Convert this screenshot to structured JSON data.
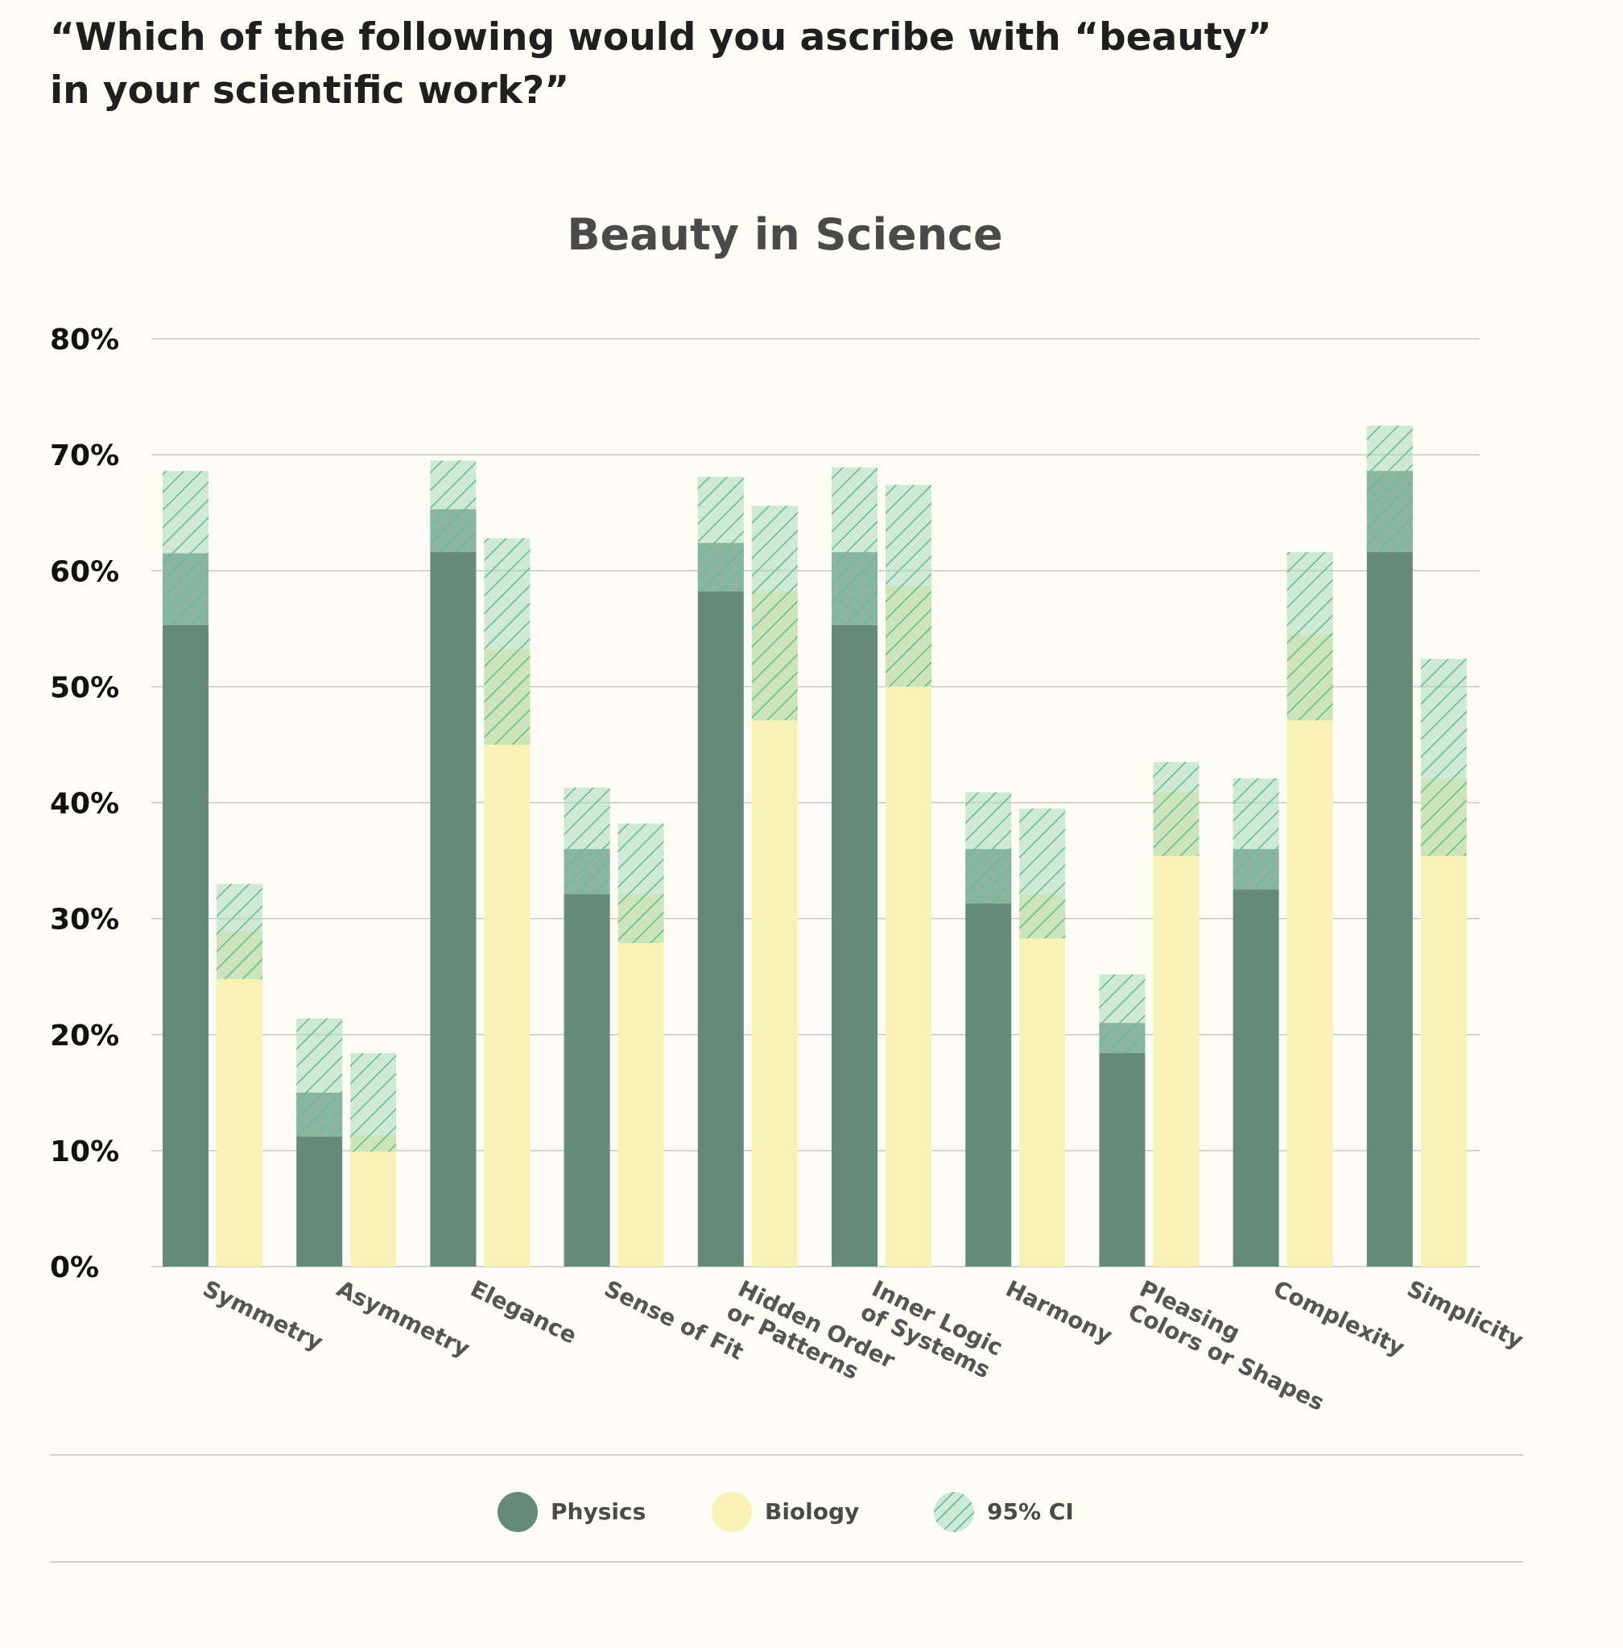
{
  "question": {
    "line1": "“Which of the following would you ascribe with “beauty”",
    "line2": "in your scientific work?”"
  },
  "colors": {
    "physics": "#668a79",
    "biology": "#f8f2b6",
    "ci_fill": "#a8d8bc",
    "ci_hatch": "#6cbb94",
    "grid": "#c9c9c4",
    "title": "#4a4a4a",
    "tick_label": "#111111"
  },
  "chart_data": {
    "type": "bar",
    "title": "Beauty in Science",
    "xlabel": "",
    "ylabel": "",
    "ylim": [
      0,
      80
    ],
    "yticks": [
      "0%",
      "10%",
      "20%",
      "30%",
      "40%",
      "50%",
      "60%",
      "70%",
      "80%"
    ],
    "grid": true,
    "legend_position": "bottom",
    "categories": [
      "Symmetry",
      "Asymmetry",
      "Elegance",
      "Sense of Fit",
      "Hidden Order\nor Patterns",
      "Inner Logic\nof Systems",
      "Harmony",
      "Pleasing\nColors or Shapes",
      "Complexity",
      "Simplicity"
    ],
    "series": [
      {
        "name": "Physics",
        "values": [
          61.5,
          15,
          65.3,
          36,
          62.4,
          61.6,
          36,
          21,
          36,
          68.6
        ],
        "ci_low": [
          55.3,
          11.2,
          61.6,
          32.1,
          58.2,
          55.3,
          31.3,
          18.4,
          32.5,
          61.6
        ],
        "ci_high": [
          68.6,
          21.4,
          69.5,
          41.3,
          68.1,
          68.9,
          40.9,
          25.2,
          42.1,
          72.5
        ]
      },
      {
        "name": "Biology",
        "values": [
          28.9,
          11.3,
          53.2,
          32.1,
          58.2,
          58.7,
          32.1,
          40.9,
          54.5,
          42.1
        ],
        "ci_low": [
          24.8,
          9.9,
          45,
          27.9,
          47.1,
          50,
          28.3,
          35.4,
          47.1,
          35.4
        ],
        "ci_high": [
          33,
          18.4,
          62.8,
          38.2,
          65.6,
          67.4,
          39.5,
          43.5,
          61.6,
          52.4
        ]
      }
    ],
    "legend": {
      "physics": "Physics",
      "biology": "Biology",
      "ci": "95% CI"
    }
  }
}
